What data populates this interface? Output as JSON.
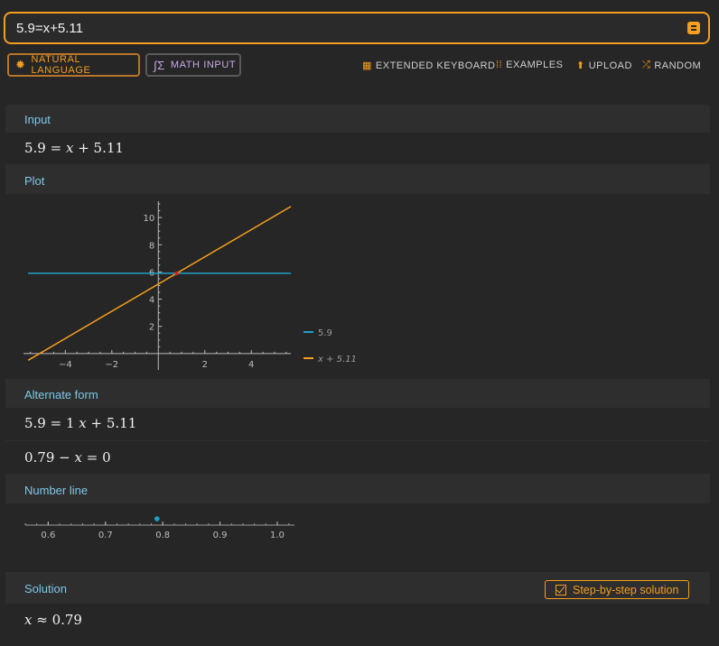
{
  "search": {
    "query": "5.9=x+5.11"
  },
  "modes": {
    "natural_language": "NATURAL LANGUAGE",
    "math_input": "MATH INPUT"
  },
  "toolbar": {
    "extended_keyboard": "EXTENDED KEYBOARD",
    "examples": "EXAMPLES",
    "upload": "UPLOAD",
    "random": "RANDOM"
  },
  "colors": {
    "accent": "#f59e1f",
    "pod_title": "#7dc8e8",
    "series_constant": "#1fa0c8",
    "series_line": "#f59e1f",
    "intersection": "#e02020"
  },
  "pods": {
    "input": {
      "title": "Input"
    },
    "plot": {
      "title": "Plot"
    },
    "alternate": {
      "title": "Alternate form"
    },
    "numberline": {
      "title": "Number line"
    },
    "solution": {
      "title": "Solution",
      "step_button": "Step-by-step solution"
    }
  },
  "chart_data": [
    {
      "type": "line",
      "xlim": [
        -5.8,
        5.7
      ],
      "ylim": [
        -1.2,
        11.2
      ],
      "x_ticks": [
        -4,
        -2,
        2,
        4
      ],
      "x_tick_labels": [
        "−4",
        "−2",
        "2",
        "4"
      ],
      "y_ticks": [
        2,
        4,
        6,
        8,
        10
      ],
      "y_tick_labels": [
        "2",
        "4",
        "6",
        "8",
        "10"
      ],
      "series": [
        {
          "name": "5.9",
          "points": [
            [
              -5.6,
              5.9
            ],
            [
              5.7,
              5.9
            ]
          ]
        },
        {
          "name": "x + 5.11",
          "points": [
            [
              -5.6,
              -0.49
            ],
            [
              5.7,
              10.81
            ]
          ]
        }
      ],
      "intersection": [
        0.79,
        5.9
      ],
      "legend": "right",
      "grid": false
    },
    {
      "type": "scatter",
      "xlim": [
        0.56,
        1.03
      ],
      "x_ticks": [
        0.6,
        0.7,
        0.8,
        0.9,
        1.0
      ],
      "x_tick_labels": [
        "0.6",
        "0.7",
        "0.8",
        "0.9",
        "1.0"
      ],
      "points": [
        0.79
      ]
    }
  ]
}
